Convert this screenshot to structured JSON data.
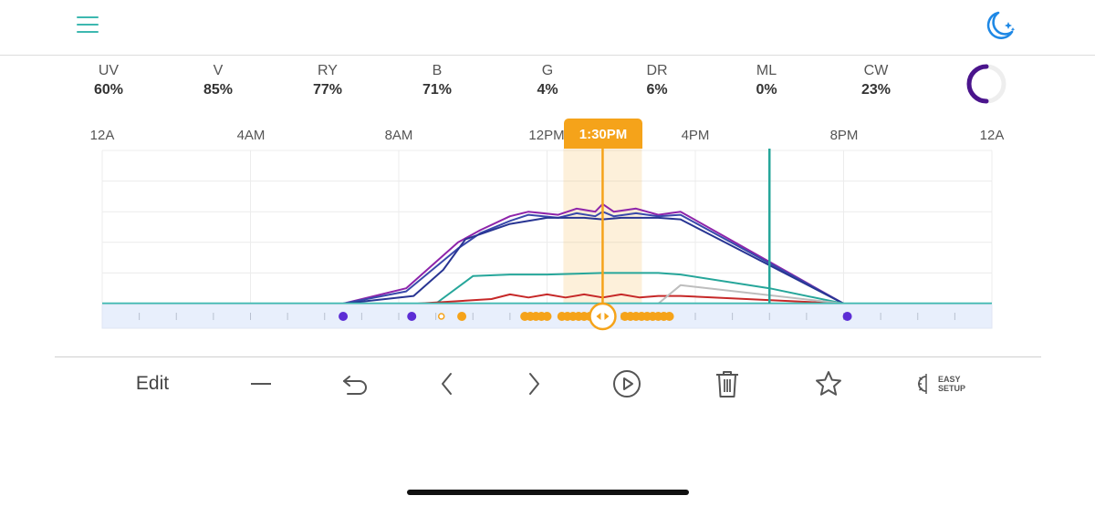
{
  "channels": [
    {
      "name": "UV",
      "value": "60%"
    },
    {
      "name": "V",
      "value": "85%"
    },
    {
      "name": "RY",
      "value": "77%"
    },
    {
      "name": "B",
      "value": "71%"
    },
    {
      "name": "G",
      "value": "4%"
    },
    {
      "name": "DR",
      "value": "6%"
    },
    {
      "name": "ML",
      "value": "0%"
    },
    {
      "name": "CW",
      "value": "23%"
    }
  ],
  "intensity_ring": {
    "fraction": 0.5,
    "color": "#4a148c"
  },
  "timeline": {
    "labels": [
      "12A",
      "4AM",
      "8AM",
      "12PM",
      "4PM",
      "8PM",
      "12A"
    ],
    "current_time": "1:30PM",
    "current_hour": 13.5,
    "marker_hour": 18
  },
  "chart_data": {
    "type": "line",
    "x_unit": "hour",
    "xlim": [
      0,
      24
    ],
    "ylim": [
      0,
      100
    ],
    "series": [
      {
        "color": "#8e24aa",
        "x": [
          0,
          6.5,
          8.2,
          9.6,
          10.2,
          11.0,
          11.5,
          12.3,
          12.8,
          13.3,
          13.5,
          13.8,
          14.4,
          15.0,
          15.6,
          20.0,
          24
        ],
        "y": [
          0,
          0,
          10,
          40,
          48,
          57,
          60,
          58,
          62,
          60,
          65,
          60,
          62,
          58,
          60,
          0,
          0
        ]
      },
      {
        "color": "#3949ab",
        "x": [
          0,
          6.5,
          8.2,
          9.6,
          10.2,
          11.0,
          11.5,
          12.3,
          12.8,
          13.3,
          13.5,
          13.8,
          14.4,
          15.0,
          15.6,
          20.0,
          24
        ],
        "y": [
          0,
          0,
          8,
          36,
          46,
          54,
          58,
          56,
          59,
          57,
          60,
          57,
          59,
          57,
          58,
          0,
          0
        ]
      },
      {
        "color": "#283593",
        "x": [
          0,
          6.5,
          8.4,
          9.2,
          9.8,
          11.0,
          12.0,
          13.0,
          13.5,
          14.0,
          15.0,
          15.6,
          20.0,
          24
        ],
        "y": [
          0,
          0,
          5,
          22,
          42,
          52,
          56,
          56,
          55,
          56,
          56,
          55,
          0,
          0
        ]
      },
      {
        "color": "#26a69a",
        "x": [
          0,
          9.0,
          10.0,
          11.0,
          12.0,
          13.5,
          15.0,
          15.6,
          18.0,
          20.0,
          24
        ],
        "y": [
          0,
          0,
          18,
          19,
          19,
          20,
          20,
          19,
          10,
          0,
          0
        ]
      },
      {
        "color": "#c62828",
        "x": [
          0,
          8.5,
          10.5,
          11.0,
          11.5,
          12.0,
          12.5,
          13.0,
          13.5,
          14.0,
          14.5,
          15.0,
          15.6,
          20.0,
          24
        ],
        "y": [
          0,
          0,
          3,
          6,
          4,
          6,
          4,
          6,
          4,
          6,
          4,
          5,
          5,
          0,
          0
        ]
      },
      {
        "color": "#bdbdbd",
        "x": [
          0,
          15.0,
          15.6,
          20.0,
          24
        ],
        "y": [
          0,
          0,
          12,
          0,
          0
        ]
      }
    ]
  },
  "timeline_dots": [
    {
      "hour": 6.5,
      "color": "#5c2dd5"
    },
    {
      "hour": 8.35,
      "color": "#5c2dd5"
    },
    {
      "hour": 9.15,
      "color": "#ffffff"
    },
    {
      "hour": 9.7,
      "color": "#f5a31a"
    },
    {
      "hour": 11.4,
      "color": "#f5a31a"
    },
    {
      "hour": 11.55,
      "color": "#f5a31a"
    },
    {
      "hour": 11.7,
      "color": "#f5a31a"
    },
    {
      "hour": 11.85,
      "color": "#f5a31a"
    },
    {
      "hour": 12.0,
      "color": "#f5a31a"
    },
    {
      "hour": 12.4,
      "color": "#f5a31a"
    },
    {
      "hour": 12.55,
      "color": "#f5a31a"
    },
    {
      "hour": 12.7,
      "color": "#f5a31a"
    },
    {
      "hour": 12.85,
      "color": "#f5a31a"
    },
    {
      "hour": 13.0,
      "color": "#f5a31a"
    },
    {
      "hour": 13.15,
      "color": "#f5a31a"
    },
    {
      "hour": 14.1,
      "color": "#f5a31a"
    },
    {
      "hour": 14.25,
      "color": "#f5a31a"
    },
    {
      "hour": 14.4,
      "color": "#f5a31a"
    },
    {
      "hour": 14.55,
      "color": "#f5a31a"
    },
    {
      "hour": 14.7,
      "color": "#f5a31a"
    },
    {
      "hour": 14.85,
      "color": "#f5a31a"
    },
    {
      "hour": 15.0,
      "color": "#f5a31a"
    },
    {
      "hour": 15.15,
      "color": "#f5a31a"
    },
    {
      "hour": 15.3,
      "color": "#f5a31a"
    },
    {
      "hour": 20.1,
      "color": "#5c2dd5"
    }
  ],
  "toolbar": {
    "edit": "Edit",
    "easy_setup_line1": "EASY",
    "easy_setup_line2": "SETUP"
  },
  "colors": {
    "accent_teal": "#3db8b0",
    "accent_orange": "#f5a31a",
    "moon_blue": "#1e88e5"
  },
  "icons": [
    "menu-icon",
    "moon-stars-icon",
    "minus-icon",
    "undo-icon",
    "chevron-left-icon",
    "chevron-right-icon",
    "play-icon",
    "trash-icon",
    "star-icon",
    "easy-setup-icon"
  ]
}
